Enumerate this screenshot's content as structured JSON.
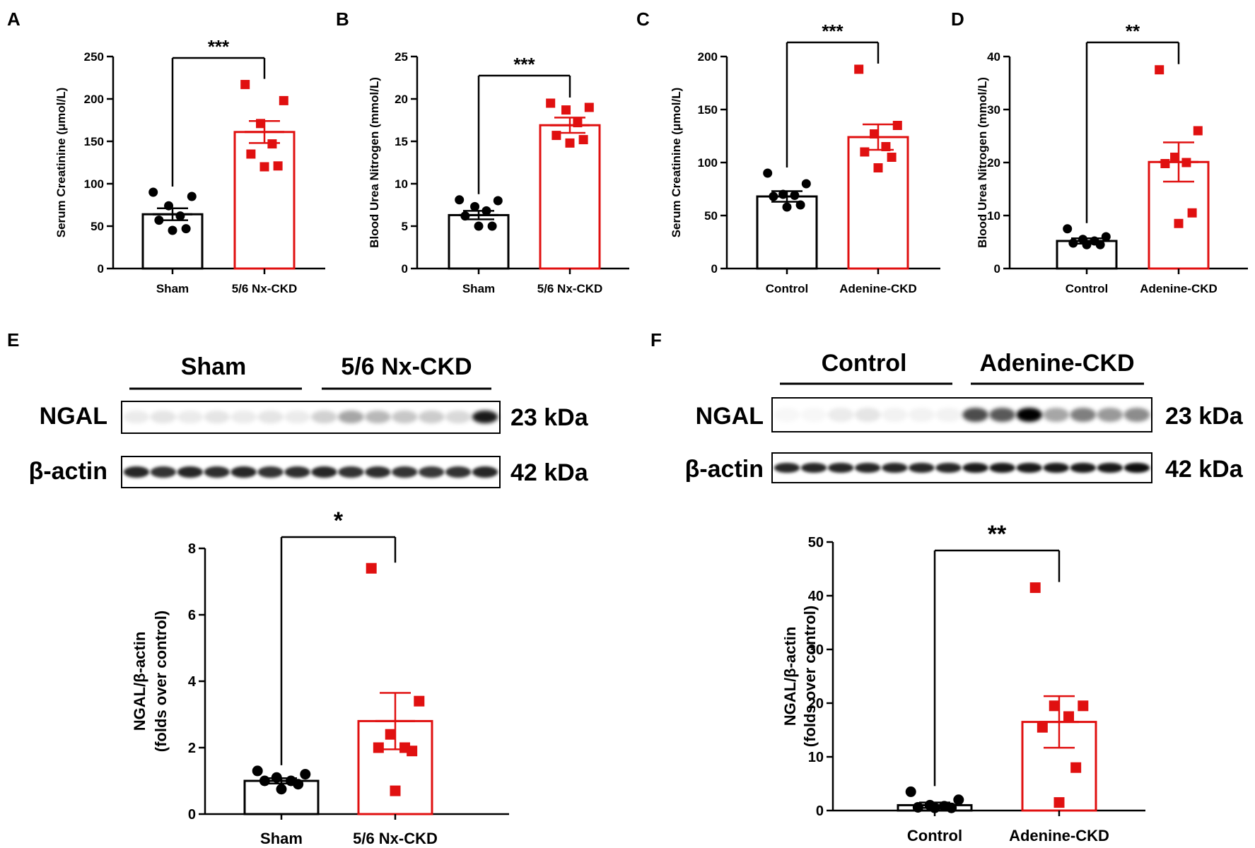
{
  "colors": {
    "control": "#000000",
    "ckd": "#e01010"
  },
  "chart_data": [
    {
      "id": "A",
      "panel_label": "A",
      "type": "bar",
      "ylabel": "Serum Creatinine (μmol/L)",
      "categories": [
        "Sham",
        "5/6 Nx-CKD"
      ],
      "ylim": [
        0,
        250
      ],
      "yticks": [
        0,
        50,
        100,
        150,
        200,
        250
      ],
      "series": [
        {
          "name": "Sham",
          "mean": 64,
          "sem": 7,
          "points": [
            90,
            85,
            74,
            62,
            57,
            47,
            45
          ]
        },
        {
          "name": "5/6 Nx-CKD",
          "mean": 161,
          "sem": 13,
          "points": [
            217,
            198,
            171,
            147,
            135,
            121,
            120
          ]
        }
      ],
      "significance": "***"
    },
    {
      "id": "B",
      "panel_label": "B",
      "type": "bar",
      "ylabel": "Blood Urea Nitrogen (mmol/L)",
      "categories": [
        "Sham",
        "5/6 Nx-CKD"
      ],
      "ylim": [
        0,
        25
      ],
      "yticks": [
        0,
        5,
        10,
        15,
        20,
        25
      ],
      "series": [
        {
          "name": "Sham",
          "mean": 6.3,
          "sem": 0.5,
          "points": [
            8.1,
            8.0,
            7.3,
            6.8,
            6.2,
            5.0,
            5.0
          ]
        },
        {
          "name": "5/6 Nx-CKD",
          "mean": 16.9,
          "sem": 0.9,
          "points": [
            19.5,
            19.0,
            18.7,
            17.2,
            15.7,
            15.2,
            14.8
          ]
        }
      ],
      "significance": "***"
    },
    {
      "id": "C",
      "panel_label": "C",
      "type": "bar",
      "ylabel": "Serum Creatinine (μmol/L)",
      "categories": [
        "Control",
        "Adenine-CKD"
      ],
      "ylim": [
        0,
        200
      ],
      "yticks": [
        0,
        50,
        100,
        150,
        200
      ],
      "series": [
        {
          "name": "Control",
          "mean": 68,
          "sem": 5,
          "points": [
            90,
            80,
            70,
            69,
            68,
            60,
            58
          ]
        },
        {
          "name": "Adenine-CKD",
          "mean": 124,
          "sem": 12,
          "points": [
            188,
            135,
            127,
            115,
            110,
            105,
            95
          ]
        }
      ],
      "significance": "***"
    },
    {
      "id": "D",
      "panel_label": "D",
      "type": "bar",
      "ylabel": "Blood Urea Nitrogen (mmol/L)",
      "categories": [
        "Control",
        "Adenine-CKD"
      ],
      "ylim": [
        0,
        40
      ],
      "yticks": [
        0,
        10,
        20,
        30,
        40
      ],
      "series": [
        {
          "name": "Control",
          "mean": 5.2,
          "sem": 0.5,
          "points": [
            7.5,
            6.0,
            5.5,
            5.2,
            4.8,
            4.5,
            4.5
          ]
        },
        {
          "name": "Adenine-CKD",
          "mean": 20.1,
          "sem": 3.7,
          "points": [
            37.5,
            26.0,
            21.0,
            20.0,
            19.8,
            10.5,
            8.5
          ]
        }
      ],
      "significance": "**"
    },
    {
      "id": "E",
      "panel_label": "E",
      "type": "bar",
      "ylabel": "NGAL/β-actin",
      "ylabel2": "(folds over control)",
      "categories": [
        "Sham",
        "5/6 Nx-CKD"
      ],
      "ylim": [
        0,
        8
      ],
      "yticks": [
        0,
        2,
        4,
        6,
        8
      ],
      "series": [
        {
          "name": "Sham",
          "mean": 1.0,
          "sem": 0.08,
          "points": [
            1.3,
            1.2,
            1.1,
            1.0,
            1.0,
            0.9,
            0.75
          ]
        },
        {
          "name": "5/6 Nx-CKD",
          "mean": 2.8,
          "sem": 0.85,
          "points": [
            7.4,
            3.4,
            2.4,
            2.0,
            2.0,
            1.9,
            0.7
          ]
        }
      ],
      "significance": "*",
      "blot": {
        "groups": [
          "Sham",
          "5/6 Nx-CKD"
        ],
        "rows": [
          {
            "protein": "NGAL",
            "size": "23 kDa"
          },
          {
            "protein": "β-actin",
            "size": "42 kDa"
          }
        ],
        "lanes": 14
      }
    },
    {
      "id": "F",
      "panel_label": "F",
      "type": "bar",
      "ylabel": "NGAL/β-actin",
      "ylabel2": "(folds over control)",
      "categories": [
        "Control",
        "Adenine-CKD"
      ],
      "ylim": [
        0,
        50
      ],
      "yticks": [
        0,
        10,
        20,
        30,
        40,
        50
      ],
      "series": [
        {
          "name": "Control",
          "mean": 1.0,
          "sem": 0.5,
          "points": [
            3.5,
            2.0,
            1.0,
            0.8,
            0.6,
            0.5,
            0.5
          ]
        },
        {
          "name": "Adenine-CKD",
          "mean": 16.5,
          "sem": 4.8,
          "points": [
            41.5,
            19.5,
            19.5,
            17.5,
            15.5,
            8.0,
            1.5
          ]
        }
      ],
      "significance": "**",
      "blot": {
        "groups": [
          "Control",
          "Adenine-CKD"
        ],
        "rows": [
          {
            "protein": "NGAL",
            "size": "23 kDa"
          },
          {
            "protein": "β-actin",
            "size": "42 kDa"
          }
        ],
        "lanes": 14
      }
    }
  ]
}
